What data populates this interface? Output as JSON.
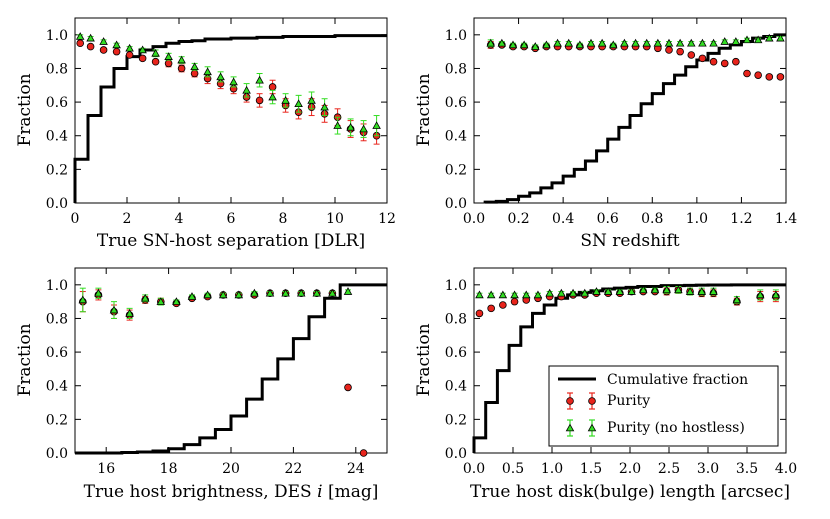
{
  "colors": {
    "cumulative": "#000000",
    "purity": "#e8241c",
    "purity_nohostless": "#33dd22",
    "errorbar_red": "#e8241c",
    "errorbar_green": "#33dd22"
  },
  "legend": {
    "cumulative": "Cumulative fraction",
    "purity": "Purity",
    "purity_nohostless": "Purity (no hostless)",
    "placement": "lower-right of bottom-right panel"
  },
  "chart_data": [
    {
      "type": "line",
      "id": "sep",
      "xlabel": "True SN-host separation [DLR]",
      "ylabel": "Fraction",
      "xlim": [
        0,
        12
      ],
      "ylim": [
        0,
        1.1
      ],
      "xticks": [
        0,
        2,
        4,
        6,
        8,
        10,
        12
      ],
      "xtick_labels": [
        "0",
        "2",
        "4",
        "6",
        "8",
        "10",
        "12"
      ],
      "yticks": [
        0,
        0.2,
        0.4,
        0.6,
        0.8,
        1.0
      ],
      "ytick_labels": [
        "0.0",
        "0.2",
        "0.4",
        "0.6",
        "0.8",
        "1.0"
      ],
      "cumulative": {
        "edges": [
          0,
          0.5,
          1.0,
          1.5,
          2.0,
          2.5,
          3.0,
          3.5,
          4.0,
          4.5,
          5.0,
          6.0,
          7.0,
          8.0,
          9.0,
          10.0,
          11.0,
          12.0
        ],
        "values": [
          0.26,
          0.52,
          0.69,
          0.8,
          0.87,
          0.91,
          0.93,
          0.95,
          0.96,
          0.965,
          0.975,
          0.98,
          0.985,
          0.99,
          0.99,
          0.995,
          0.995
        ]
      },
      "purity": {
        "x": [
          0.2,
          0.6,
          1.1,
          1.6,
          2.1,
          2.6,
          3.1,
          3.6,
          4.1,
          4.6,
          5.1,
          5.6,
          6.1,
          6.6,
          7.1,
          7.6,
          8.1,
          8.6,
          9.1,
          9.6,
          10.1,
          10.6,
          11.1,
          11.6
        ],
        "y": [
          0.95,
          0.93,
          0.91,
          0.9,
          0.88,
          0.86,
          0.84,
          0.83,
          0.8,
          0.77,
          0.74,
          0.71,
          0.68,
          0.63,
          0.61,
          0.69,
          0.58,
          0.54,
          0.57,
          0.53,
          0.51,
          0.44,
          0.42,
          0.4
        ],
        "err": [
          0.01,
          0.01,
          0.01,
          0.01,
          0.01,
          0.01,
          0.01,
          0.02,
          0.02,
          0.02,
          0.03,
          0.03,
          0.03,
          0.03,
          0.04,
          0.04,
          0.04,
          0.04,
          0.05,
          0.05,
          0.05,
          0.05,
          0.05,
          0.05
        ]
      },
      "purity_nohostless": {
        "x": [
          0.2,
          0.6,
          1.1,
          1.6,
          2.1,
          2.6,
          3.1,
          3.6,
          4.1,
          4.6,
          5.1,
          5.6,
          6.1,
          6.6,
          7.1,
          7.6,
          8.1,
          8.6,
          9.1,
          9.6,
          10.1,
          10.6,
          11.1,
          11.6
        ],
        "y": [
          0.99,
          0.98,
          0.96,
          0.94,
          0.92,
          0.91,
          0.89,
          0.87,
          0.85,
          0.81,
          0.78,
          0.75,
          0.72,
          0.67,
          0.73,
          0.63,
          0.61,
          0.59,
          0.61,
          0.57,
          0.46,
          0.45,
          0.44,
          0.46
        ],
        "err": [
          0.01,
          0.01,
          0.01,
          0.01,
          0.01,
          0.01,
          0.02,
          0.02,
          0.02,
          0.02,
          0.03,
          0.03,
          0.03,
          0.04,
          0.04,
          0.04,
          0.04,
          0.05,
          0.05,
          0.05,
          0.05,
          0.05,
          0.05,
          0.06
        ]
      }
    },
    {
      "type": "line",
      "id": "redshift",
      "xlabel": "SN redshift",
      "ylabel": "Fraction",
      "xlim": [
        0,
        1.4
      ],
      "ylim": [
        0,
        1.1
      ],
      "xticks": [
        0,
        0.2,
        0.4,
        0.6,
        0.8,
        1.0,
        1.2,
        1.4
      ],
      "xtick_labels": [
        "0.0",
        "0.2",
        "0.4",
        "0.6",
        "0.8",
        "1.0",
        "1.2",
        "1.4"
      ],
      "yticks": [
        0,
        0.2,
        0.4,
        0.6,
        0.8,
        1.0
      ],
      "ytick_labels": [
        "0.0",
        "0.2",
        "0.4",
        "0.6",
        "0.8",
        "1.0"
      ],
      "cumulative": {
        "edges": [
          0.05,
          0.1,
          0.15,
          0.2,
          0.25,
          0.3,
          0.35,
          0.4,
          0.45,
          0.5,
          0.55,
          0.6,
          0.65,
          0.7,
          0.75,
          0.8,
          0.85,
          0.9,
          0.95,
          1.0,
          1.05,
          1.1,
          1.15,
          1.2,
          1.25,
          1.3,
          1.35,
          1.4
        ],
        "values": [
          0.005,
          0.01,
          0.02,
          0.04,
          0.06,
          0.09,
          0.12,
          0.16,
          0.2,
          0.25,
          0.31,
          0.38,
          0.45,
          0.52,
          0.59,
          0.65,
          0.71,
          0.76,
          0.81,
          0.85,
          0.89,
          0.92,
          0.94,
          0.96,
          0.98,
          0.99,
          1.0
        ]
      },
      "purity": {
        "x": [
          0.075,
          0.125,
          0.175,
          0.225,
          0.275,
          0.325,
          0.375,
          0.425,
          0.475,
          0.525,
          0.575,
          0.625,
          0.675,
          0.725,
          0.775,
          0.825,
          0.875,
          0.925,
          0.975,
          1.025,
          1.075,
          1.125,
          1.175,
          1.225,
          1.275,
          1.325,
          1.375
        ],
        "y": [
          0.94,
          0.94,
          0.93,
          0.93,
          0.92,
          0.93,
          0.93,
          0.93,
          0.93,
          0.93,
          0.93,
          0.93,
          0.93,
          0.93,
          0.93,
          0.92,
          0.91,
          0.9,
          0.88,
          0.86,
          0.84,
          0.83,
          0.84,
          0.77,
          0.76,
          0.75,
          0.75
        ],
        "err": [
          0.02,
          0.01,
          0.01,
          0.01,
          0.01,
          0.01,
          0.01,
          0.01,
          0.01,
          0.01,
          0.01,
          0.01,
          0.01,
          0.01,
          0.01,
          0.01,
          0.01,
          0.01,
          0.01,
          0.01,
          0.01,
          0.01,
          0.01,
          0.01,
          0.01,
          0.01,
          0.01
        ]
      },
      "purity_nohostless": {
        "x": [
          0.075,
          0.125,
          0.175,
          0.225,
          0.275,
          0.325,
          0.375,
          0.425,
          0.475,
          0.525,
          0.575,
          0.625,
          0.675,
          0.725,
          0.775,
          0.825,
          0.875,
          0.925,
          0.975,
          1.025,
          1.075,
          1.125,
          1.175,
          1.225,
          1.275,
          1.325,
          1.375
        ],
        "y": [
          0.95,
          0.95,
          0.94,
          0.94,
          0.93,
          0.94,
          0.95,
          0.95,
          0.94,
          0.95,
          0.95,
          0.94,
          0.95,
          0.95,
          0.95,
          0.95,
          0.95,
          0.95,
          0.95,
          0.95,
          0.95,
          0.96,
          0.96,
          0.97,
          0.97,
          0.98,
          0.98
        ],
        "err": [
          0.02,
          0.01,
          0.01,
          0.01,
          0.01,
          0.01,
          0.01,
          0.01,
          0.01,
          0.01,
          0.01,
          0.01,
          0.01,
          0.01,
          0.01,
          0.01,
          0.01,
          0.01,
          0.01,
          0.01,
          0.01,
          0.01,
          0.01,
          0.01,
          0.01,
          0.01,
          0.01
        ]
      }
    },
    {
      "type": "line",
      "id": "brightness",
      "xlabel_pre": "True host brightness, DES ",
      "xlabel_var": "i",
      "xlabel_post": " [mag]",
      "ylabel": "Fraction",
      "xlim": [
        15,
        25
      ],
      "ylim": [
        0,
        1.1
      ],
      "xticks": [
        16,
        18,
        20,
        22,
        24
      ],
      "xtick_labels": [
        "16",
        "18",
        "20",
        "22",
        "24"
      ],
      "yticks": [
        0,
        0.2,
        0.4,
        0.6,
        0.8,
        1.0
      ],
      "ytick_labels": [
        "0.0",
        "0.2",
        "0.4",
        "0.6",
        "0.8",
        "1.0"
      ],
      "cumulative": {
        "edges": [
          15.0,
          15.5,
          16.0,
          16.5,
          17.0,
          17.5,
          18.0,
          18.5,
          19.0,
          19.5,
          20.0,
          20.5,
          21.0,
          21.5,
          22.0,
          22.5,
          23.0,
          23.5,
          25.0
        ],
        "values": [
          0.0,
          0.0,
          0.0,
          0.003,
          0.006,
          0.012,
          0.025,
          0.05,
          0.09,
          0.14,
          0.22,
          0.32,
          0.44,
          0.56,
          0.68,
          0.81,
          0.92,
          1.0
        ]
      },
      "purity": {
        "x": [
          15.25,
          15.75,
          16.25,
          16.75,
          17.25,
          17.75,
          18.25,
          18.75,
          19.25,
          19.75,
          20.25,
          20.75,
          21.25,
          21.75,
          22.25,
          22.75,
          23.25,
          23.75,
          24.25
        ],
        "y": [
          0.9,
          0.94,
          0.84,
          0.82,
          0.91,
          0.9,
          0.89,
          0.92,
          0.93,
          0.94,
          0.94,
          0.94,
          0.95,
          0.95,
          0.95,
          0.95,
          0.95,
          0.39,
          0.0
        ],
        "err": [
          0.06,
          0.03,
          0.04,
          0.03,
          0.02,
          0.02,
          0.01,
          0.01,
          0.01,
          0.01,
          0.01,
          0.01,
          0.01,
          0.01,
          0.01,
          0.01,
          0.01,
          0.0,
          0.0
        ]
      },
      "purity_nohostless": {
        "x": [
          15.25,
          15.75,
          16.25,
          16.75,
          17.25,
          17.75,
          18.25,
          18.75,
          19.25,
          19.75,
          20.25,
          20.75,
          21.25,
          21.75,
          22.25,
          22.75,
          23.25,
          23.75
        ],
        "y": [
          0.91,
          0.95,
          0.85,
          0.83,
          0.92,
          0.9,
          0.9,
          0.93,
          0.94,
          0.94,
          0.94,
          0.95,
          0.95,
          0.95,
          0.95,
          0.95,
          0.95,
          0.96
        ],
        "err": [
          0.07,
          0.03,
          0.05,
          0.03,
          0.02,
          0.02,
          0.01,
          0.01,
          0.01,
          0.01,
          0.01,
          0.01,
          0.01,
          0.01,
          0.01,
          0.01,
          0.01,
          0.01
        ]
      }
    },
    {
      "type": "line",
      "id": "disklength",
      "xlabel": "True host disk(bulge) length [arcsec]",
      "ylabel": "Fraction",
      "xlim": [
        0,
        4.0
      ],
      "ylim": [
        0,
        1.1
      ],
      "xticks": [
        0,
        0.5,
        1.0,
        1.5,
        2.0,
        2.5,
        3.0,
        3.5,
        4.0
      ],
      "xtick_labels": [
        "0.0",
        "0.5",
        "1.0",
        "1.5",
        "2.0",
        "2.5",
        "3.0",
        "3.5",
        "4.0"
      ],
      "yticks": [
        0,
        0.2,
        0.4,
        0.6,
        0.8,
        1.0
      ],
      "ytick_labels": [
        "0.0",
        "0.2",
        "0.4",
        "0.6",
        "0.8",
        "1.0"
      ],
      "cumulative": {
        "edges": [
          0.0,
          0.15,
          0.3,
          0.45,
          0.6,
          0.75,
          0.9,
          1.05,
          1.2,
          1.35,
          1.5,
          1.65,
          1.8,
          1.95,
          2.1,
          2.25,
          2.4,
          2.55,
          2.7,
          2.85,
          3.0,
          3.3,
          3.6,
          4.0
        ],
        "values": [
          0.09,
          0.3,
          0.49,
          0.64,
          0.75,
          0.83,
          0.88,
          0.92,
          0.94,
          0.955,
          0.965,
          0.975,
          0.98,
          0.985,
          0.99,
          0.99,
          0.995,
          0.995,
          0.997,
          0.998,
          0.999,
          1.0,
          1.0
        ]
      },
      "purity": {
        "x": [
          0.07,
          0.22,
          0.37,
          0.52,
          0.67,
          0.82,
          0.97,
          1.12,
          1.27,
          1.42,
          1.57,
          1.72,
          1.87,
          2.02,
          2.17,
          2.32,
          2.47,
          2.62,
          2.77,
          2.92,
          3.07,
          3.37,
          3.67,
          3.87
        ],
        "y": [
          0.83,
          0.86,
          0.88,
          0.9,
          0.91,
          0.92,
          0.93,
          0.93,
          0.94,
          0.94,
          0.95,
          0.95,
          0.95,
          0.96,
          0.96,
          0.96,
          0.96,
          0.97,
          0.96,
          0.95,
          0.95,
          0.9,
          0.93,
          0.93
        ],
        "err": [
          0.01,
          0.01,
          0.01,
          0.01,
          0.01,
          0.01,
          0.01,
          0.01,
          0.01,
          0.01,
          0.01,
          0.01,
          0.01,
          0.01,
          0.01,
          0.01,
          0.02,
          0.02,
          0.02,
          0.02,
          0.02,
          0.02,
          0.03,
          0.03
        ]
      },
      "purity_nohostless": {
        "x": [
          0.07,
          0.22,
          0.37,
          0.52,
          0.67,
          0.82,
          0.97,
          1.12,
          1.27,
          1.42,
          1.57,
          1.72,
          1.87,
          2.02,
          2.17,
          2.32,
          2.47,
          2.62,
          2.77,
          2.92,
          3.07,
          3.37,
          3.67,
          3.87
        ],
        "y": [
          0.94,
          0.94,
          0.94,
          0.94,
          0.94,
          0.94,
          0.95,
          0.95,
          0.95,
          0.95,
          0.96,
          0.96,
          0.96,
          0.96,
          0.97,
          0.97,
          0.97,
          0.97,
          0.96,
          0.96,
          0.96,
          0.91,
          0.94,
          0.94
        ],
        "err": [
          0.01,
          0.01,
          0.01,
          0.01,
          0.01,
          0.01,
          0.01,
          0.01,
          0.01,
          0.01,
          0.01,
          0.01,
          0.01,
          0.01,
          0.01,
          0.01,
          0.02,
          0.02,
          0.02,
          0.02,
          0.02,
          0.02,
          0.03,
          0.03
        ]
      }
    }
  ]
}
